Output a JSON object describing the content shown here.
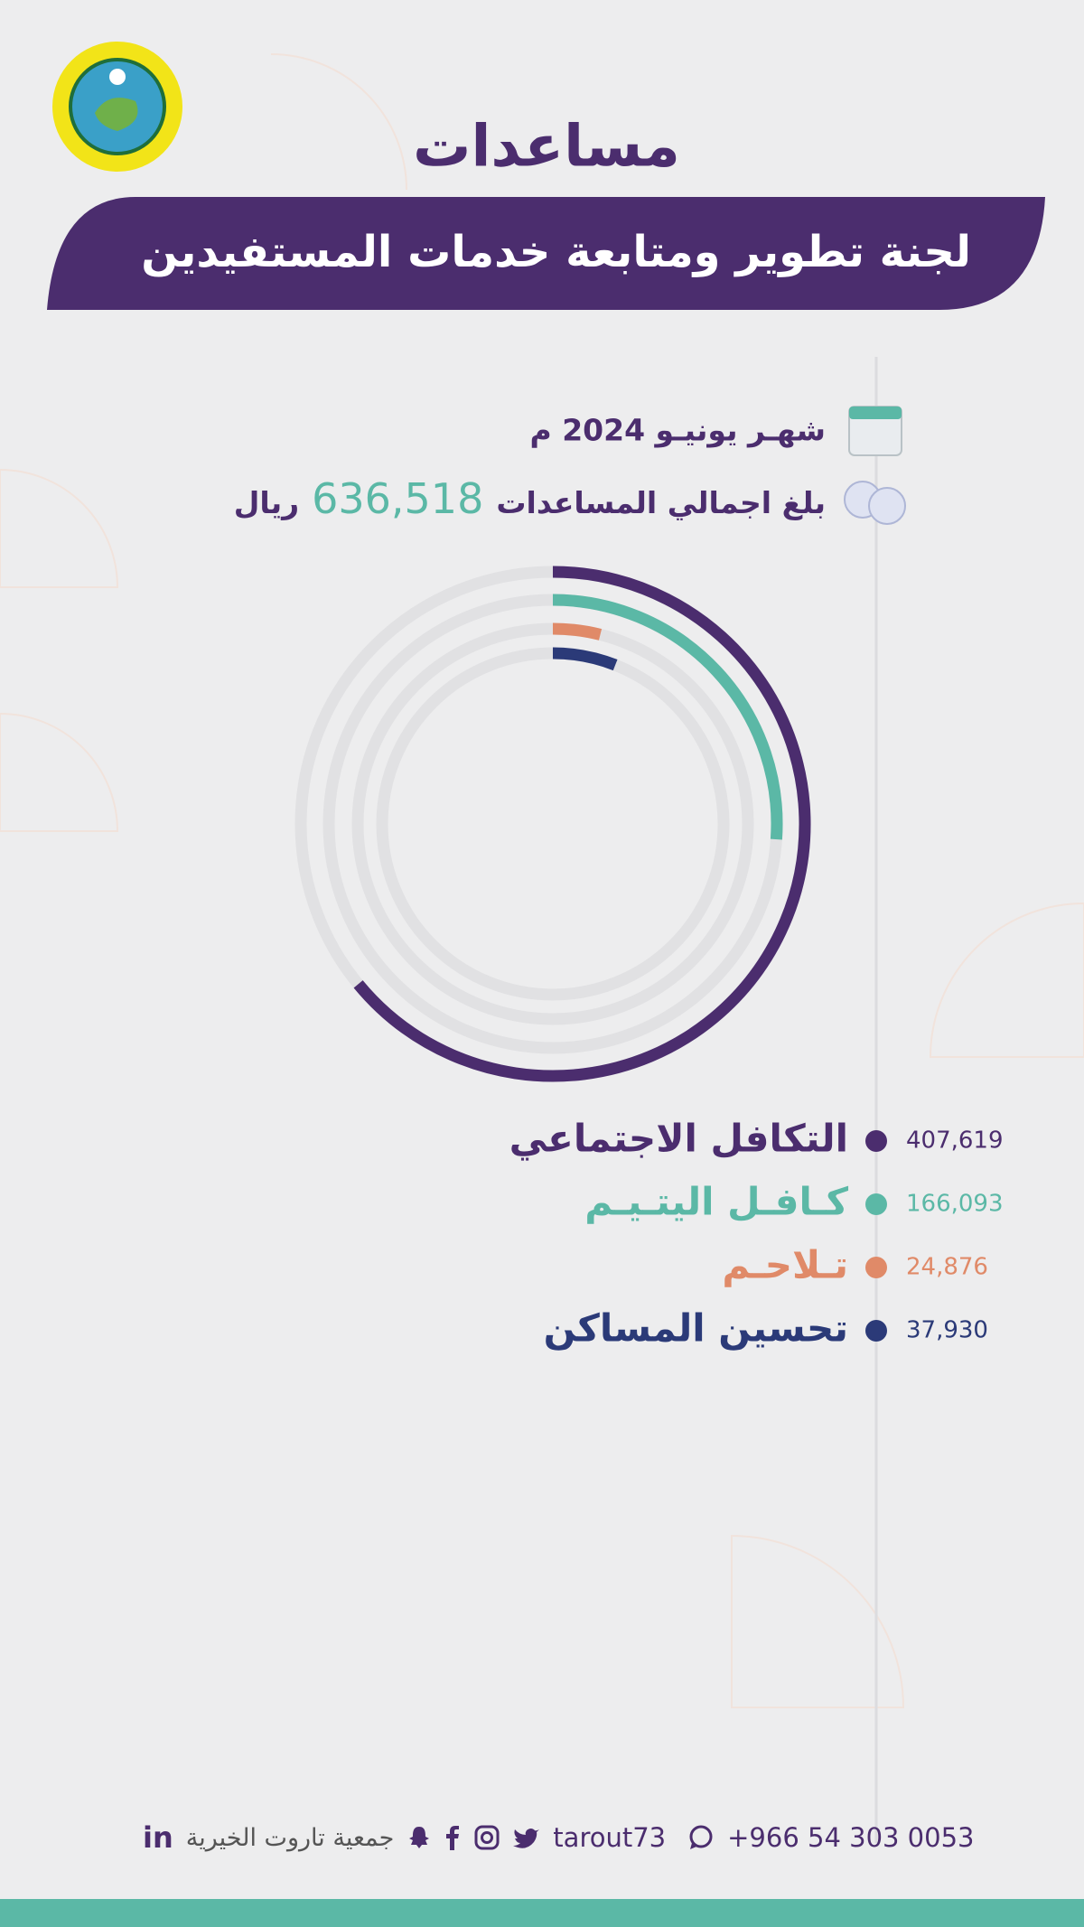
{
  "header": {
    "title": "مساعدات",
    "banner": "لجنة تطوير ومتابعة خدمات المستفيدين",
    "month": "شهـر يونيـو 2024 م",
    "total_text": "بلغ اجمالي المساعدات",
    "total": {
      "value": 636518,
      "label": "636,518"
    },
    "currency": "ريال"
  },
  "chart_data": {
    "type": "radial_bar",
    "categories": [
      "التكافل الاجتماعي",
      "كـافـل اليتـيـم",
      "تـلاحـم",
      "تحسين المساكن"
    ],
    "values": [
      407619,
      166093,
      24876,
      37930
    ],
    "value_labels": [
      "407,619",
      "166,093",
      "24,876",
      "37,930"
    ],
    "colors": [
      "#4b2d6e",
      "#5bb8a6",
      "#e08a68",
      "#2b3a78"
    ]
  },
  "footer": {
    "phone": "+966 54 303 0053",
    "handle": "tarout73",
    "org": "جمعية تاروت الخيرية",
    "linkedin": "in"
  }
}
